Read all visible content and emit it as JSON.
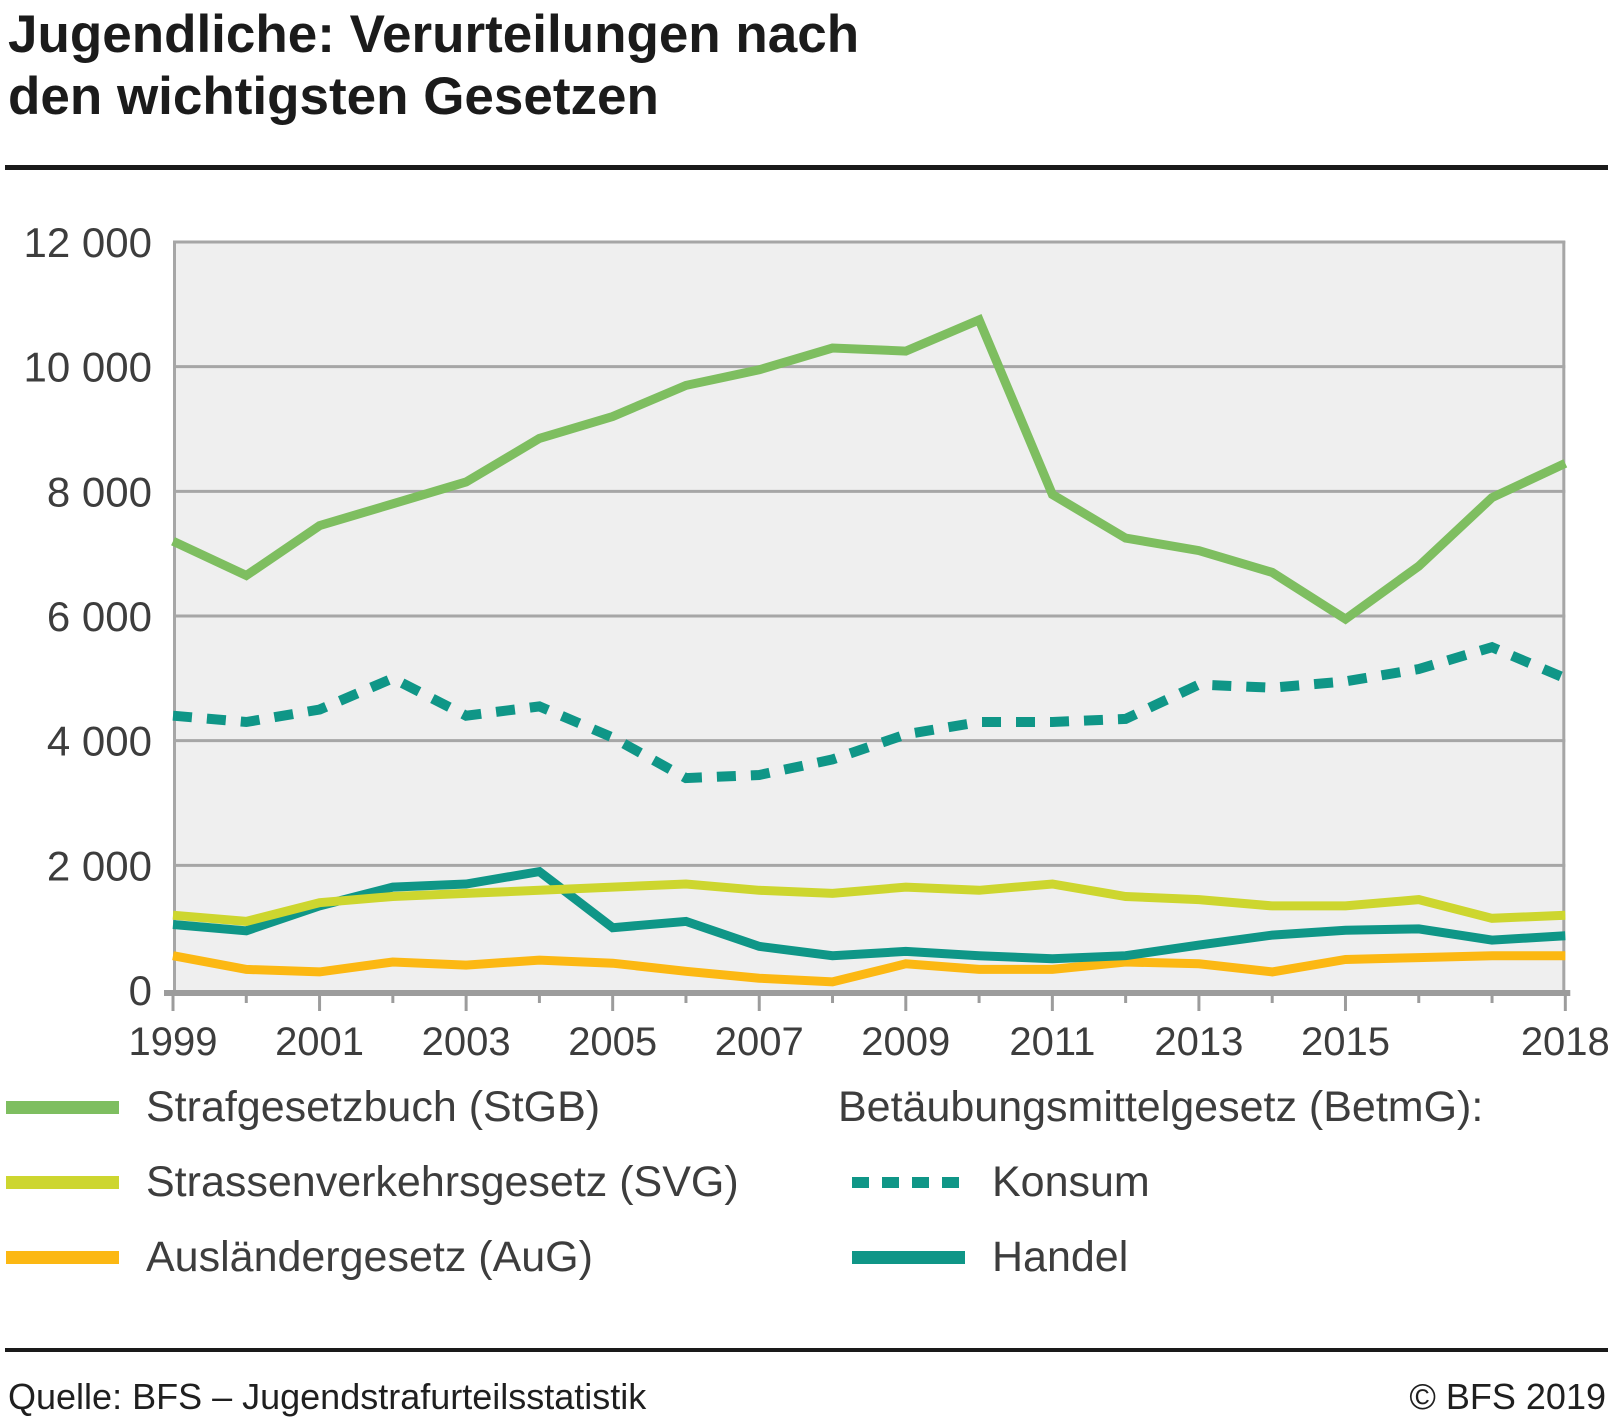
{
  "header": {
    "title_line1": "Jugendliche: Verurteilungen nach",
    "title_line2": "den wichtigsten Gesetzen"
  },
  "legend": {
    "col1": [
      {
        "id": "stgb",
        "label": "Strafgesetzbuch (StGB)",
        "color": "#7ebe60",
        "style": "solid"
      },
      {
        "id": "svg",
        "label": "Strassenverkehrsgesetz (SVG)",
        "color": "#cdd62f",
        "style": "solid"
      },
      {
        "id": "aug",
        "label": "Ausländergesetz (AuG)",
        "color": "#fcb813",
        "style": "solid"
      }
    ],
    "col2_header": "Betäubungsmittelgesetz (BetmG):",
    "col2": [
      {
        "id": "konsum",
        "label": "Konsum",
        "color": "#0f9687",
        "style": "dashed"
      },
      {
        "id": "handel",
        "label": "Handel",
        "color": "#0f9687",
        "style": "solid"
      }
    ]
  },
  "footer": {
    "source": "Quelle: BFS – Jugendstrafurteilsstatistik",
    "copyright": "© BFS 2019"
  },
  "chart_data": {
    "type": "line",
    "x": [
      1999,
      2000,
      2001,
      2002,
      2003,
      2004,
      2005,
      2006,
      2007,
      2008,
      2009,
      2010,
      2011,
      2012,
      2013,
      2014,
      2015,
      2016,
      2017,
      2018
    ],
    "labeled_years": [
      1999,
      2001,
      2003,
      2005,
      2007,
      2009,
      2011,
      2013,
      2015,
      2018
    ],
    "ylim": [
      0,
      12000
    ],
    "y_ticks": [
      0,
      2000,
      4000,
      6000,
      8000,
      10000,
      12000
    ],
    "y_tick_labels": [
      "0",
      "2 000",
      "4 000",
      "6 000",
      "8 000",
      "10 000",
      "12 000"
    ],
    "grid": true,
    "legend_position": "bottom",
    "plot_bg": "#efefef",
    "grid_color": "#a6a6a6",
    "axis_color": "#9c9c9c",
    "label_color": "#3d3d3d",
    "series": [
      {
        "id": "stgb",
        "name": "Strafgesetzbuch (StGB)",
        "color": "#7ebe60",
        "dash": false,
        "values": [
          7200,
          6650,
          7450,
          7800,
          8150,
          8850,
          9200,
          9700,
          9950,
          10300,
          10250,
          10750,
          7950,
          7250,
          7050,
          6700,
          5950,
          6800,
          7900,
          8450
        ]
      },
      {
        "id": "konsum",
        "name": "Betäubungsmittelgesetz (BetmG): Konsum",
        "color": "#0f9687",
        "dash": true,
        "values": [
          4400,
          4300,
          4500,
          5000,
          4400,
          4550,
          4050,
          3400,
          3450,
          3700,
          4100,
          4300,
          4300,
          4350,
          4900,
          4850,
          4950,
          5150,
          5500,
          5000
        ]
      },
      {
        "id": "svg",
        "name": "Strassenverkehrsgesetz (SVG)",
        "color": "#cdd62f",
        "dash": false,
        "values": [
          1200,
          1100,
          1400,
          1500,
          1550,
          1600,
          1650,
          1700,
          1600,
          1550,
          1650,
          1600,
          1700,
          1500,
          1450,
          1350,
          1350,
          1450,
          1150,
          1200
        ]
      },
      {
        "id": "handel",
        "name": "Betäubungsmittelgesetz (BetmG): Handel",
        "color": "#0f9687",
        "dash": false,
        "values": [
          1050,
          950,
          1350,
          1650,
          1700,
          1900,
          1000,
          1100,
          700,
          550,
          620,
          550,
          500,
          550,
          720,
          880,
          960,
          980,
          800,
          870
        ]
      },
      {
        "id": "aug",
        "name": "Ausländergesetz (AuG)",
        "color": "#fcb813",
        "dash": false,
        "values": [
          550,
          330,
          290,
          450,
          400,
          480,
          430,
          300,
          190,
          130,
          420,
          330,
          330,
          450,
          420,
          290,
          490,
          520,
          550,
          550
        ]
      }
    ],
    "draw_order": [
      "konsum",
      "aug",
      "handel",
      "svg",
      "stgb"
    ]
  }
}
